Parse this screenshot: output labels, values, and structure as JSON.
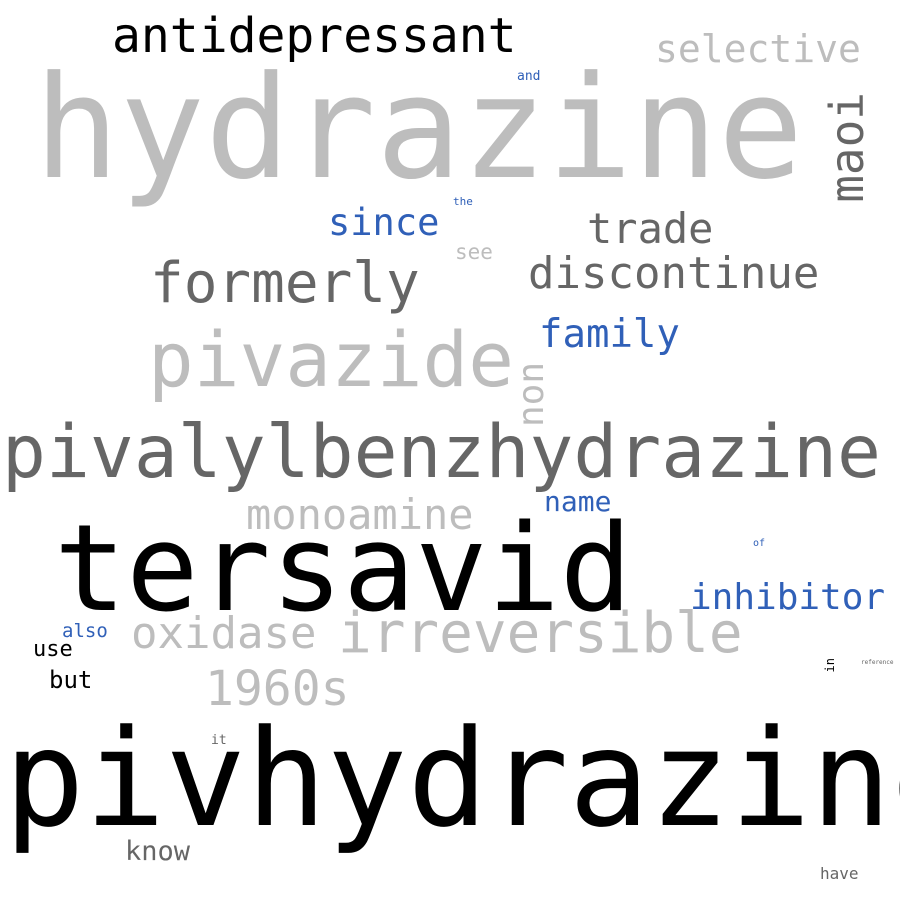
{
  "words": {
    "hydrazine": "hydrazine",
    "pivhydrazine": "pivhydrazine",
    "tersavid": "tersavid",
    "pivalylbenzhydrazine": "pivalylbenzhydrazine",
    "pivazide": "pivazide",
    "antidepressant": "antidepressant",
    "selective": "selective",
    "maoi": "maoi",
    "formerly": "formerly",
    "trade": "trade",
    "discontinue": "discontinue",
    "since": "since",
    "family": "family",
    "non": "non",
    "monoamine": "monoamine",
    "name": "name",
    "inhibitor": "inhibitor",
    "oxidase": "oxidase",
    "irreversible": "irreversible",
    "years_1960s": "1960s",
    "know": "know",
    "also": "also",
    "use": "use",
    "but": "but",
    "and": "and",
    "the": "the",
    "see": "see",
    "of": "of",
    "in": "in",
    "reference": "reference",
    "it": "it",
    "have": "have"
  },
  "colors": {
    "light_gray": "#bdbdbd",
    "dark_gray": "#666666",
    "black": "#000000",
    "blue": "#3060b8"
  }
}
